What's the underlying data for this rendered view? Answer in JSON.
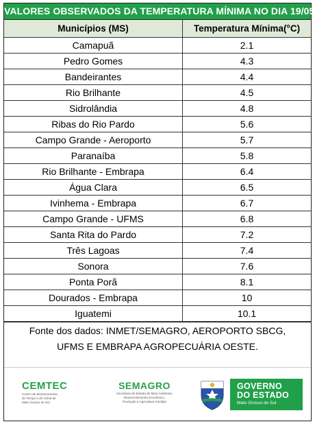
{
  "title": "VALORES OBSERVADOS DA TEMPERATURA MÍNIMA NO DIA 19/05",
  "table": {
    "headers": [
      "Municípios (MS)",
      "Temperatura Mínima(°C)"
    ],
    "rows": [
      {
        "city": "Camapuã",
        "temp": "2.1"
      },
      {
        "city": "Pedro Gomes",
        "temp": "4.3"
      },
      {
        "city": "Bandeirantes",
        "temp": "4.4"
      },
      {
        "city": "Rio Brilhante",
        "temp": "4.5"
      },
      {
        "city": "Sidrolândia",
        "temp": "4.8"
      },
      {
        "city": "Ribas do Rio Pardo",
        "temp": "5.6"
      },
      {
        "city": "Campo Grande - Aeroporto",
        "temp": "5.7"
      },
      {
        "city": "Paranaíba",
        "temp": "5.8"
      },
      {
        "city": "Rio Brilhante - Embrapa",
        "temp": "6.4"
      },
      {
        "city": "Água Clara",
        "temp": "6.5"
      },
      {
        "city": "Ivinhema - Embrapa",
        "temp": "6.7"
      },
      {
        "city": "Campo Grande - UFMS",
        "temp": "6.8"
      },
      {
        "city": "Santa Rita do Pardo",
        "temp": "7.2"
      },
      {
        "city": "Três Lagoas",
        "temp": "7.4"
      },
      {
        "city": "Sonora",
        "temp": "7.6"
      },
      {
        "city": "Ponta Porã",
        "temp": "8.1"
      },
      {
        "city": "Dourados - Embrapa",
        "temp": "10"
      },
      {
        "city": "Iguatemi",
        "temp": "10.1"
      }
    ]
  },
  "source": {
    "line1": "Fonte dos dados: INMET/SEMAGRO, AEROPORTO SBCG,",
    "line2": "UFMS E EMBRAPA AGROPECUÁRIA OESTE."
  },
  "footer": {
    "cemtec": {
      "name": "CEMTEC",
      "sub1": "Centro de Monitoramento",
      "sub2": "do Tempo e do Clima de",
      "sub3": "Mato Grosso do Sul"
    },
    "semagro": {
      "name": "SEMAGRO",
      "sub1": "Secretaria de Estado de Meio Ambiente,",
      "sub2": "Desenvolvimento Econômico,",
      "sub3": "Produção e Agricultura Familiar"
    },
    "governo": {
      "line1": "GOVERNO",
      "line2": "DO ESTADO",
      "line3": "Mato Grosso do Sul"
    }
  },
  "colors": {
    "title_bg": "#21a04a",
    "header_bg": "#dfe9d7",
    "brand_green": "#27a046"
  }
}
